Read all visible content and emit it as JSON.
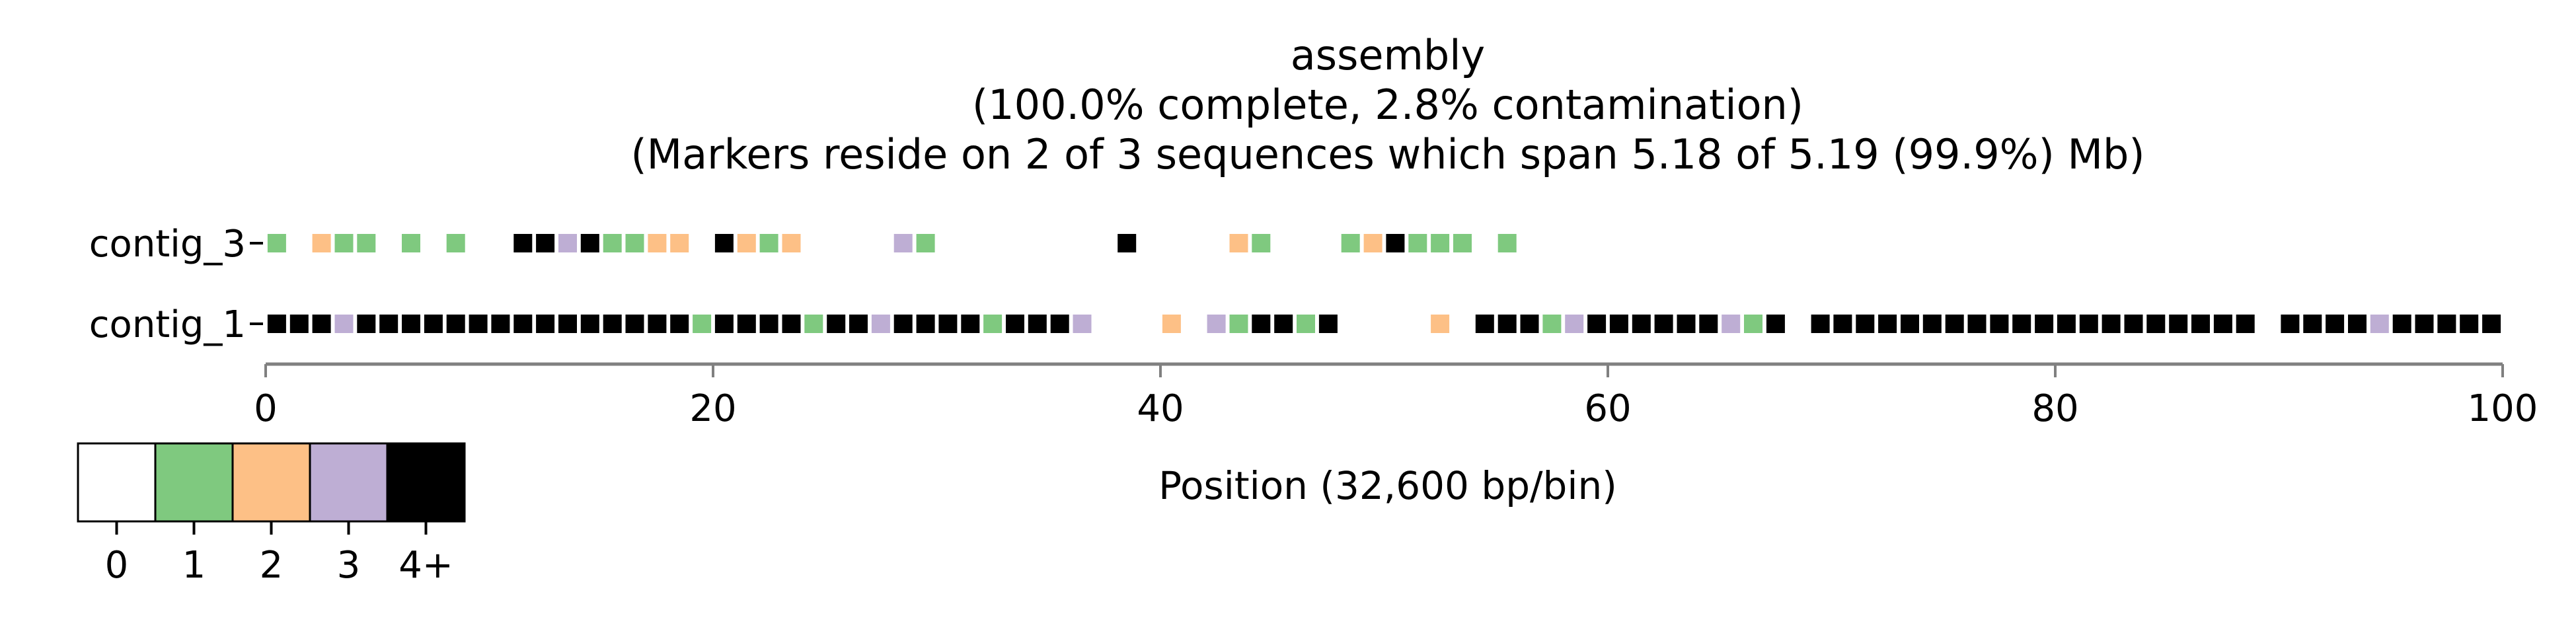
{
  "chart_data": {
    "type": "heatmap",
    "title": "assembly",
    "subtitle_lines": [
      "(100.0% complete, 2.8% contamination)",
      "(Markers reside on 2 of 3 sequences which span 5.18 of 5.19 (99.9%) Mb)"
    ],
    "xlabel": "Position (32,600 bp/bin)",
    "xlim": [
      0,
      100
    ],
    "xticks": [
      0,
      20,
      40,
      60,
      80,
      100
    ],
    "categories": [
      "contig_3",
      "contig_1"
    ],
    "colors": {
      "0": "#ffffff",
      "1": "#7fc97f",
      "2": "#fdc086",
      "3": "#beaed4",
      "4": "#000000"
    },
    "legend": {
      "placement": "bottom-left",
      "labels": [
        "0",
        "1",
        "2",
        "3",
        "4+"
      ],
      "colors": [
        "#ffffff",
        "#7fc97f",
        "#fdc086",
        "#beaed4",
        "#000000"
      ]
    },
    "series": [
      {
        "name": "contig_3",
        "cells": [
          [
            0,
            1
          ],
          [
            2,
            2
          ],
          [
            3,
            1
          ],
          [
            4,
            1
          ],
          [
            6,
            1
          ],
          [
            8,
            1
          ],
          [
            11,
            4
          ],
          [
            12,
            4
          ],
          [
            13,
            3
          ],
          [
            14,
            4
          ],
          [
            15,
            1
          ],
          [
            16,
            1
          ],
          [
            17,
            2
          ],
          [
            18,
            2
          ],
          [
            20,
            4
          ],
          [
            21,
            2
          ],
          [
            22,
            1
          ],
          [
            23,
            2
          ],
          [
            28,
            3
          ],
          [
            29,
            1
          ],
          [
            38,
            4
          ],
          [
            43,
            2
          ],
          [
            44,
            1
          ],
          [
            48,
            1
          ],
          [
            49,
            2
          ],
          [
            50,
            4
          ],
          [
            51,
            1
          ],
          [
            52,
            1
          ],
          [
            53,
            1
          ],
          [
            55,
            1
          ]
        ]
      },
      {
        "name": "contig_1",
        "cells": [
          [
            0,
            4
          ],
          [
            1,
            4
          ],
          [
            2,
            4
          ],
          [
            3,
            3
          ],
          [
            4,
            4
          ],
          [
            5,
            4
          ],
          [
            6,
            4
          ],
          [
            7,
            4
          ],
          [
            8,
            4
          ],
          [
            9,
            4
          ],
          [
            10,
            4
          ],
          [
            11,
            4
          ],
          [
            12,
            4
          ],
          [
            13,
            4
          ],
          [
            14,
            4
          ],
          [
            15,
            4
          ],
          [
            16,
            4
          ],
          [
            17,
            4
          ],
          [
            18,
            4
          ],
          [
            19,
            1
          ],
          [
            20,
            4
          ],
          [
            21,
            4
          ],
          [
            22,
            4
          ],
          [
            23,
            4
          ],
          [
            24,
            1
          ],
          [
            25,
            4
          ],
          [
            26,
            4
          ],
          [
            27,
            3
          ],
          [
            28,
            4
          ],
          [
            29,
            4
          ],
          [
            30,
            4
          ],
          [
            31,
            4
          ],
          [
            32,
            1
          ],
          [
            33,
            4
          ],
          [
            34,
            4
          ],
          [
            35,
            4
          ],
          [
            36,
            3
          ],
          [
            40,
            2
          ],
          [
            42,
            3
          ],
          [
            43,
            1
          ],
          [
            44,
            4
          ],
          [
            45,
            4
          ],
          [
            46,
            1
          ],
          [
            47,
            4
          ],
          [
            52,
            2
          ],
          [
            54,
            4
          ],
          [
            55,
            4
          ],
          [
            56,
            4
          ],
          [
            57,
            1
          ],
          [
            58,
            3
          ],
          [
            59,
            4
          ],
          [
            60,
            4
          ],
          [
            61,
            4
          ],
          [
            62,
            4
          ],
          [
            63,
            4
          ],
          [
            64,
            4
          ],
          [
            65,
            3
          ],
          [
            66,
            1
          ],
          [
            67,
            4
          ],
          [
            69,
            4
          ],
          [
            70,
            4
          ],
          [
            71,
            4
          ],
          [
            72,
            4
          ],
          [
            73,
            4
          ],
          [
            74,
            4
          ],
          [
            75,
            4
          ],
          [
            76,
            4
          ],
          [
            77,
            4
          ],
          [
            78,
            4
          ],
          [
            79,
            4
          ],
          [
            80,
            4
          ],
          [
            81,
            4
          ],
          [
            82,
            4
          ],
          [
            83,
            4
          ],
          [
            84,
            4
          ],
          [
            85,
            4
          ],
          [
            86,
            4
          ],
          [
            87,
            4
          ],
          [
            88,
            4
          ],
          [
            90,
            4
          ],
          [
            91,
            4
          ],
          [
            92,
            4
          ],
          [
            93,
            4
          ],
          [
            94,
            3
          ],
          [
            95,
            4
          ],
          [
            96,
            4
          ],
          [
            97,
            4
          ],
          [
            98,
            4
          ],
          [
            99,
            4
          ]
        ]
      }
    ]
  }
}
